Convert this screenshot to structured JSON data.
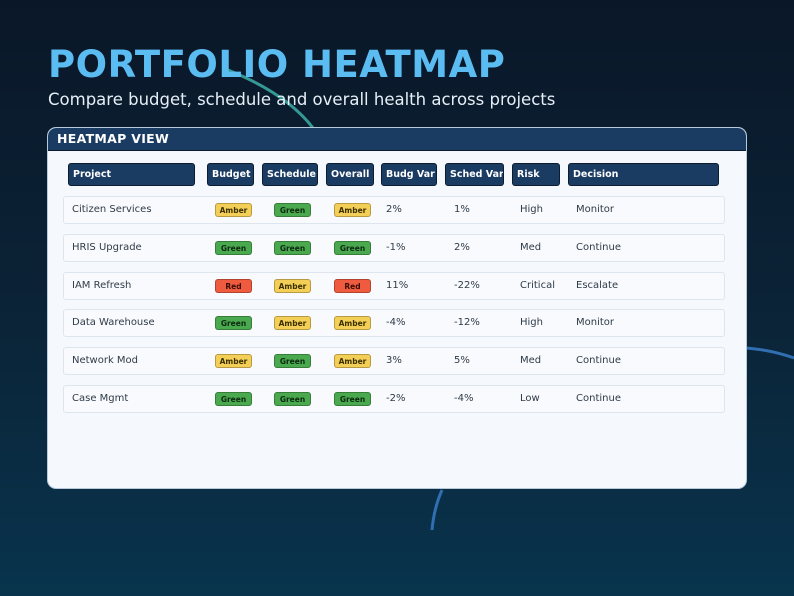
{
  "page": {
    "title": "PORTFOLIO HEATMAP",
    "subtitle": "Compare budget, schedule and overall health across projects"
  },
  "panel": {
    "title": "HEATMAP VIEW",
    "columns": [
      "Project",
      "Budget",
      "Schedule",
      "Overall",
      "Budg Var",
      "Sched Var",
      "Risk",
      "Decision"
    ],
    "rows": [
      {
        "project": "Citizen Services",
        "budget": "Amber",
        "schedule": "Green",
        "overall": "Amber",
        "budg_var": "2%",
        "sched_var": "1%",
        "risk": "High",
        "decision": "Monitor"
      },
      {
        "project": "HRIS Upgrade",
        "budget": "Green",
        "schedule": "Green",
        "overall": "Green",
        "budg_var": "-1%",
        "sched_var": "2%",
        "risk": "Med",
        "decision": "Continue"
      },
      {
        "project": "IAM Refresh",
        "budget": "Red",
        "schedule": "Amber",
        "overall": "Red",
        "budg_var": "11%",
        "sched_var": "-22%",
        "risk": "Critical",
        "decision": "Escalate"
      },
      {
        "project": "Data Warehouse",
        "budget": "Green",
        "schedule": "Amber",
        "overall": "Amber",
        "budg_var": "-4%",
        "sched_var": "-12%",
        "risk": "High",
        "decision": "Monitor"
      },
      {
        "project": "Network Mod",
        "budget": "Amber",
        "schedule": "Green",
        "overall": "Amber",
        "budg_var": "3%",
        "sched_var": "5%",
        "risk": "Med",
        "decision": "Continue"
      },
      {
        "project": "Case Mgmt",
        "budget": "Green",
        "schedule": "Green",
        "overall": "Green",
        "budg_var": "-2%",
        "sched_var": "-4%",
        "risk": "Low",
        "decision": "Continue"
      }
    ]
  },
  "colors": {
    "title": "#5bbcf2",
    "header_bg": "#1a3b62",
    "amber": "#f4cf57",
    "green": "#4aa84f",
    "red": "#ee5b3f",
    "arc_teal": "#3aa6a0",
    "arc_blue": "#2f6fb2"
  }
}
